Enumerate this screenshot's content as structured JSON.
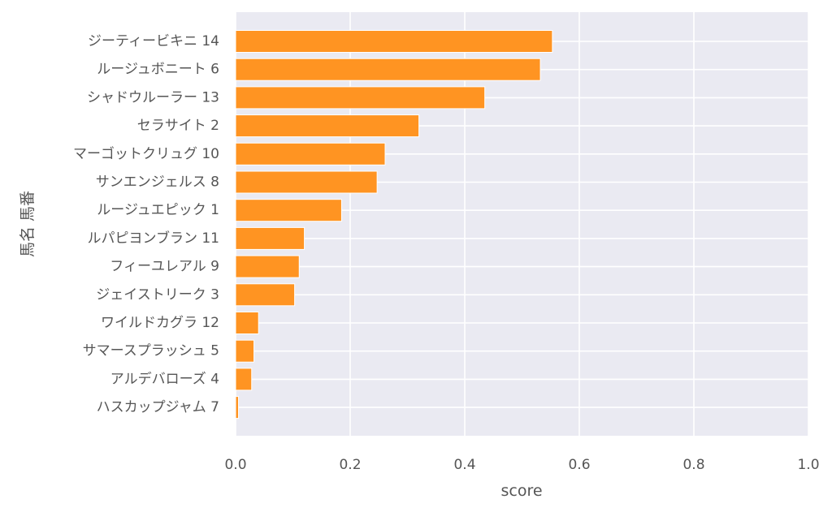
{
  "chart_data": {
    "type": "bar",
    "orientation": "horizontal",
    "categories": [
      "ジーティービキニ 14",
      "ルージュボニート 6",
      "シャドウルーラー 13",
      "セラサイト 2",
      "マーゴットクリュグ 10",
      "サンエンジェルス 8",
      "ルージュエピック 1",
      "ルパピヨンブラン 11",
      "フィーユレアル 9",
      "ジェイストリーク 3",
      "ワイルドカグラ 12",
      "サマースプラッシュ 5",
      "アルデバローズ 4",
      "ハスカップジャム 7"
    ],
    "values": [
      0.553,
      0.532,
      0.435,
      0.32,
      0.261,
      0.247,
      0.185,
      0.12,
      0.111,
      0.103,
      0.04,
      0.032,
      0.028,
      0.005
    ],
    "xlabel": "score",
    "ylabel": "馬名 馬番",
    "xlim": [
      0,
      1.0
    ],
    "xticks": [
      "0.0",
      "0.2",
      "0.4",
      "0.6",
      "0.8",
      "1.0"
    ],
    "grid": true,
    "colors": {
      "bar": "#ff9422",
      "background": "#eaeaf2",
      "grid": "#ffffff",
      "text": "#555555"
    }
  }
}
